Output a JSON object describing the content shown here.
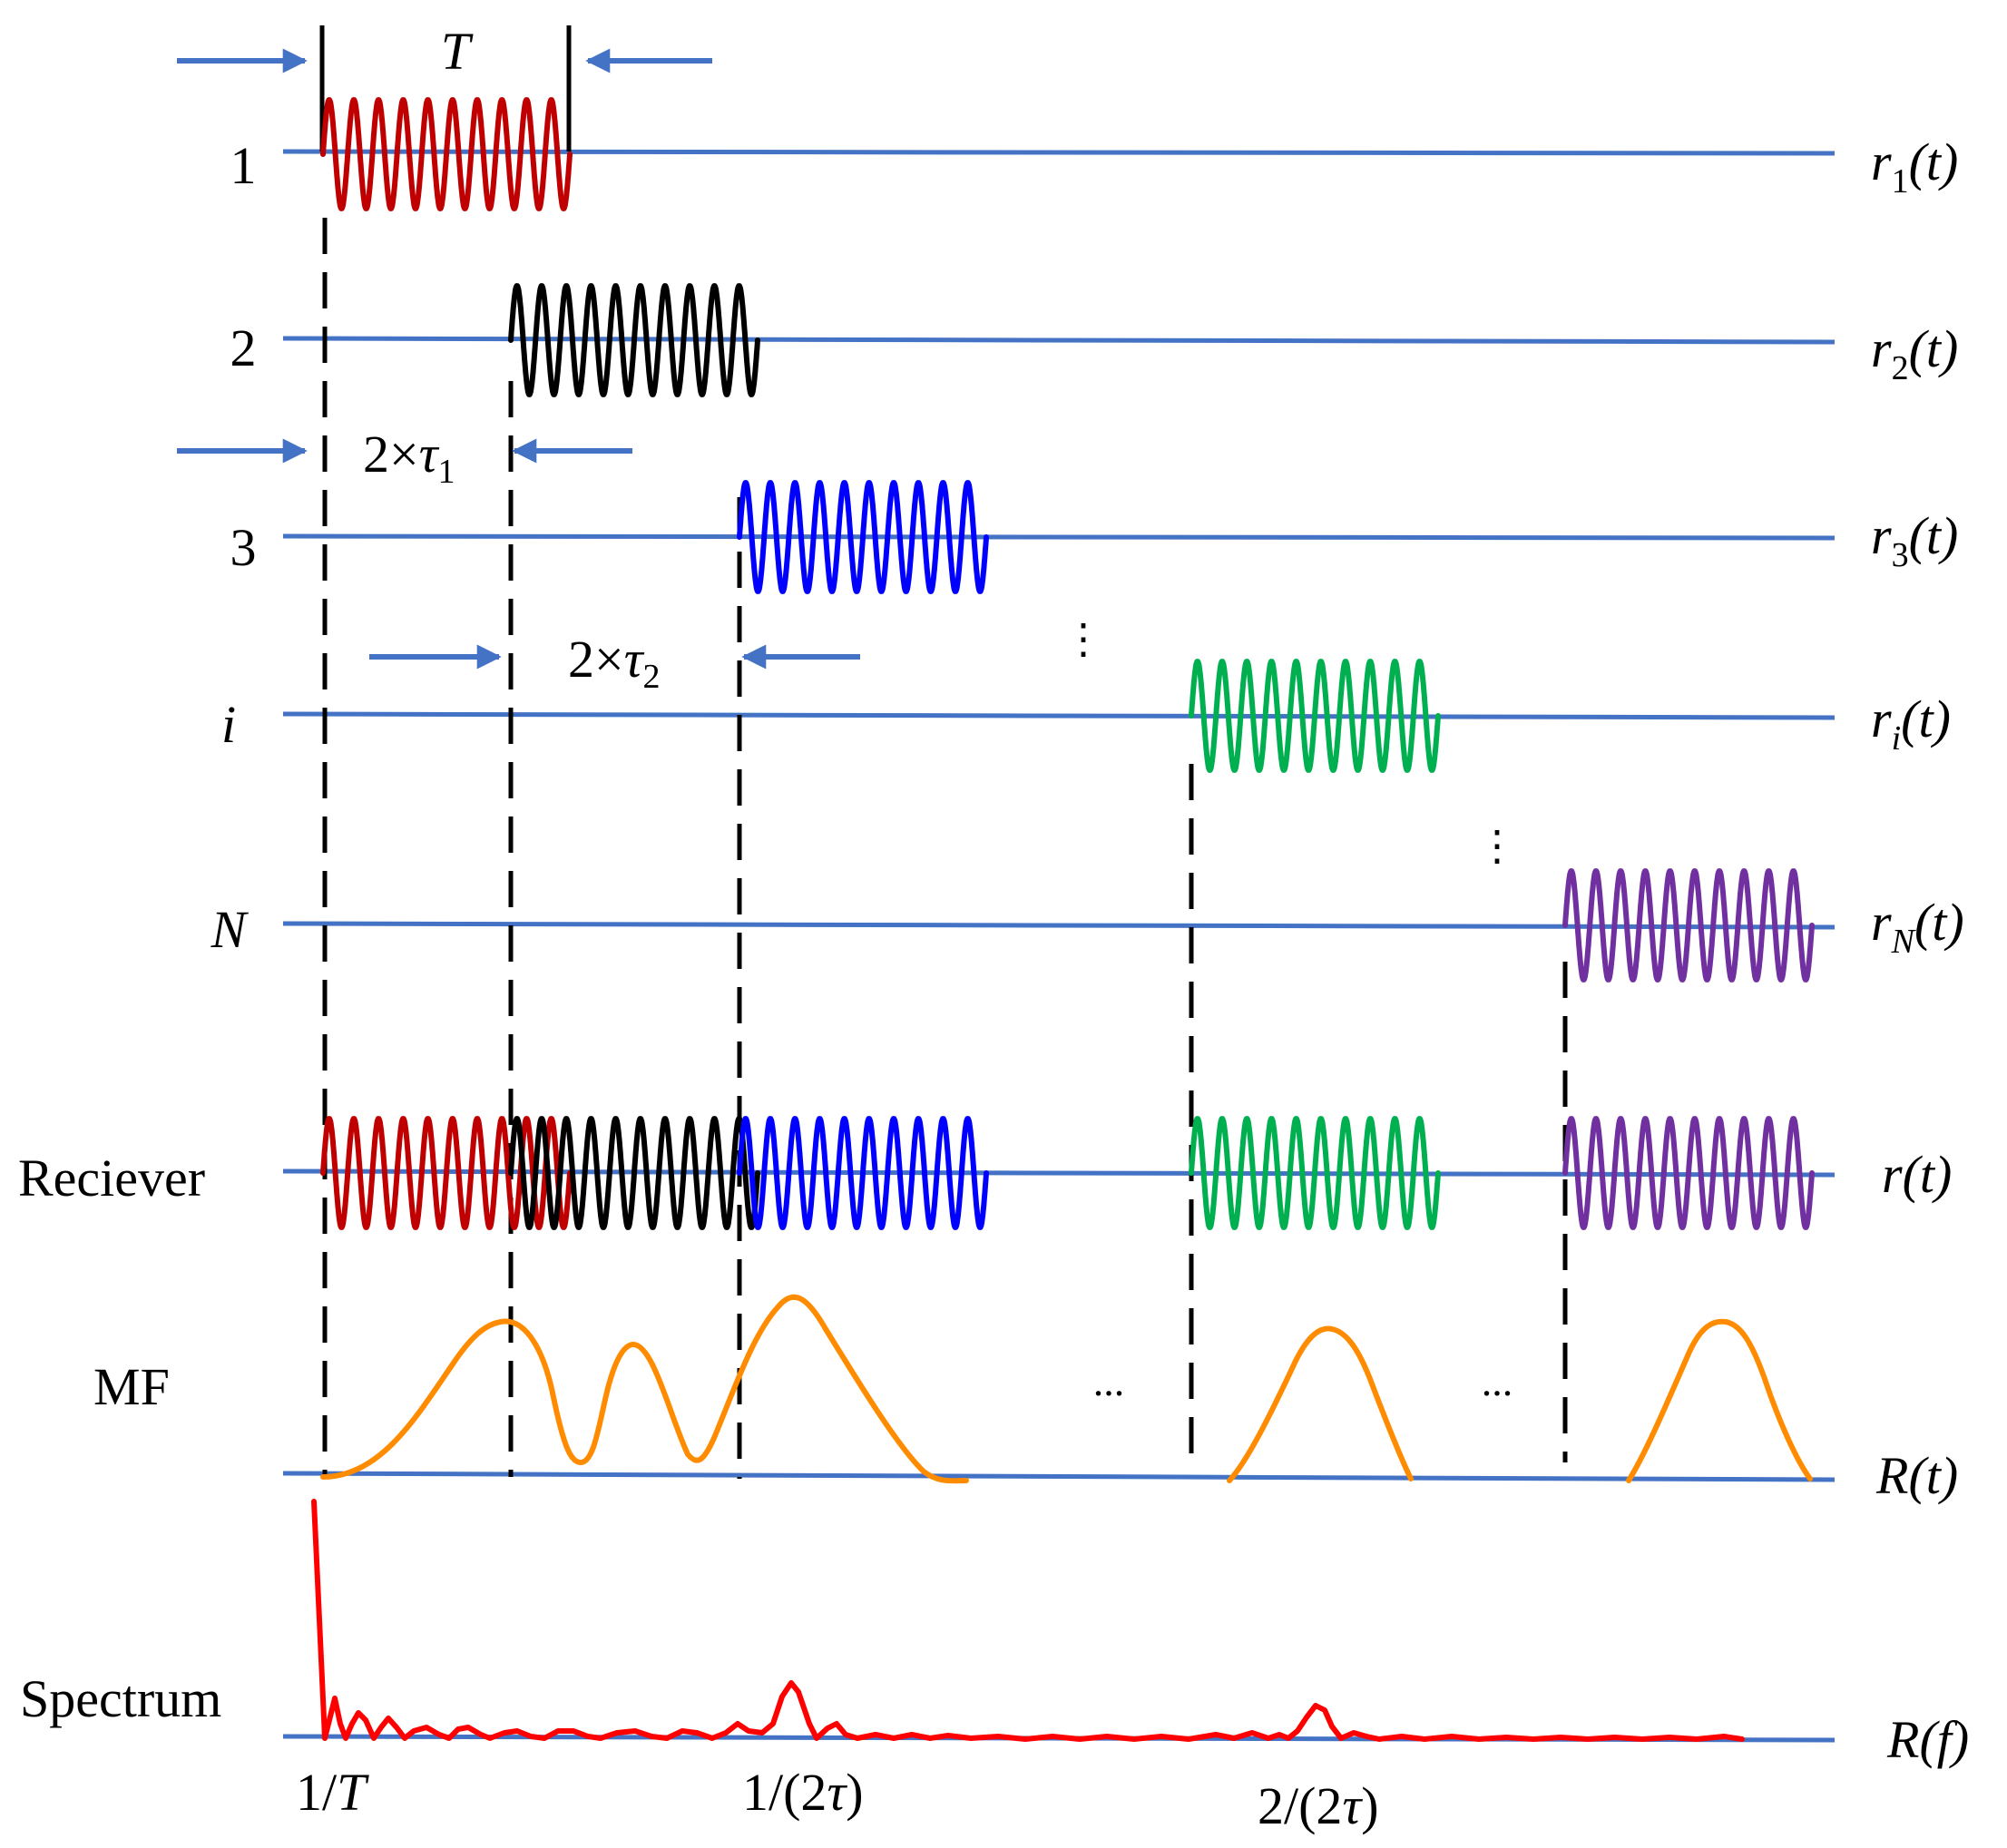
{
  "colors": {
    "baseline": "#4472c4",
    "arrow": "#4472c4",
    "dash": "#000000",
    "signal_1": "#c00000",
    "signal_2": "#000000",
    "signal_3": "#0000ff",
    "signal_i": "#00b050",
    "signal_N": "#7030a0",
    "mf_curve": "#ff8c00",
    "spectrum": "#ff0000"
  },
  "rows": [
    {
      "key": "r1",
      "left": "1",
      "right_base": "r",
      "right_sub": "1",
      "right_arg": "(t)"
    },
    {
      "key": "r2",
      "left": "2",
      "right_base": "r",
      "right_sub": "2",
      "right_arg": "(t)"
    },
    {
      "key": "r3",
      "left": "3",
      "right_base": "r",
      "right_sub": "3",
      "right_arg": "(t)"
    },
    {
      "key": "ri",
      "left": "i",
      "right_base": "r",
      "right_sub": "i",
      "right_arg": "(t)"
    },
    {
      "key": "rN",
      "left": "N",
      "right_base": "r",
      "right_sub": "N",
      "right_arg": "(t)"
    }
  ],
  "receiver": {
    "left": "Reciever",
    "right_base": "r",
    "right_arg": "(t)"
  },
  "mf": {
    "left": "MF",
    "right_base": "R",
    "right_arg": "(t)"
  },
  "spectrum": {
    "left": "Spectrum",
    "right_base": "R",
    "right_arg": "(f)"
  },
  "annotations": {
    "period": "T",
    "delay1_prefix": "2×",
    "delay1_sym": "τ",
    "delay1_sub": "1",
    "delay2_prefix": "2×",
    "delay2_sym": "τ",
    "delay2_sub": "2",
    "ellipsis": "...",
    "vdots": "⋮"
  },
  "freq_ticks": [
    {
      "num": "1/",
      "var": "T",
      "close": ""
    },
    {
      "num": "1/(2",
      "var": "τ",
      "close": ")"
    },
    {
      "num": "2/(2",
      "var": "τ",
      "close": ")"
    }
  ]
}
